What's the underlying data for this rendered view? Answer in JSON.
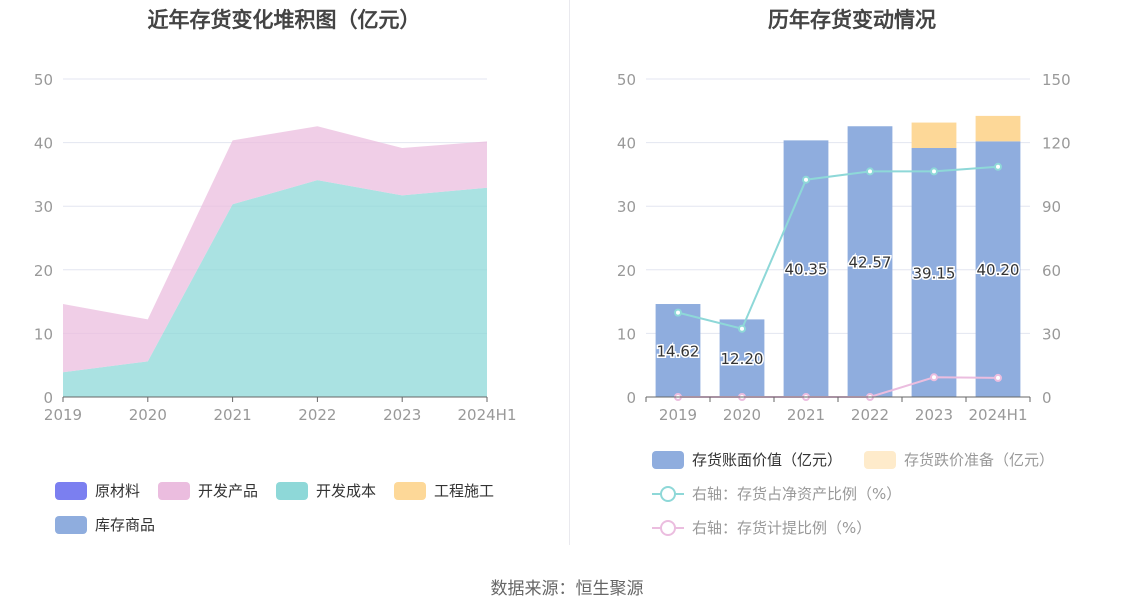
{
  "chart_data": [
    {
      "type": "area",
      "stacked": true,
      "title": "近年存货变化堆积图（亿元）",
      "categories": [
        "2019",
        "2020",
        "2021",
        "2022",
        "2023",
        "2024H1"
      ],
      "ylim": [
        0,
        50
      ],
      "yticks": [
        "0",
        "10",
        "20",
        "30",
        "40",
        "50"
      ],
      "grid": true,
      "series": [
        {
          "name": "开发成本",
          "color": "#8ed8d8",
          "values": [
            3.9,
            5.6,
            30.3,
            34.1,
            31.7,
            32.9
          ]
        },
        {
          "name": "开发产品",
          "color": "#ebbddf",
          "values": [
            10.72,
            6.6,
            10.05,
            8.47,
            7.45,
            7.3
          ]
        }
      ],
      "legend": [
        {
          "name": "原材料",
          "color": "#7b7ff0"
        },
        {
          "name": "开发产品",
          "color": "#ebbddf"
        },
        {
          "name": "开发成本",
          "color": "#8ed8d8"
        },
        {
          "name": "工程施工",
          "color": "#fdd898"
        },
        {
          "name": "库存商品",
          "color": "#8fadde"
        }
      ],
      "legend_position": "bottom"
    },
    {
      "type": "bar",
      "stacked": true,
      "title": "历年存货变动情况",
      "categories": [
        "2019",
        "2020",
        "2021",
        "2022",
        "2023",
        "2024H1"
      ],
      "ylim": [
        0,
        50
      ],
      "y2lim": [
        0,
        150
      ],
      "yticks": [
        "0",
        "10",
        "20",
        "30",
        "40",
        "50"
      ],
      "y2ticks": [
        "0",
        "30",
        "60",
        "90",
        "120",
        "150"
      ],
      "grid": true,
      "series": [
        {
          "name": "存货账面价值（亿元）",
          "color": "#8fadde",
          "values": [
            14.62,
            12.2,
            40.35,
            42.57,
            39.15,
            40.2
          ],
          "labels": [
            "14.62",
            "12.20",
            "40.35",
            "42.57",
            "39.15",
            "40.20"
          ]
        },
        {
          "name": "存货跌价准备（亿元）",
          "color": "#fdd898",
          "values": [
            0,
            0,
            0,
            0,
            4.0,
            4.0
          ]
        },
        {
          "name": "右轴：存货占净资产比例（%）",
          "axis": "right",
          "color": "#8ed8d8",
          "values": [
            39.8,
            32.2,
            102.5,
            106.4,
            106.4,
            108.6
          ]
        },
        {
          "name": "右轴：存货计提比例（%）",
          "axis": "right",
          "color": "#ebbddf",
          "values": [
            0,
            0,
            0,
            0,
            9.3,
            9.0
          ]
        }
      ],
      "legend_position": "bottom"
    }
  ],
  "source": "数据来源：恒生聚源"
}
